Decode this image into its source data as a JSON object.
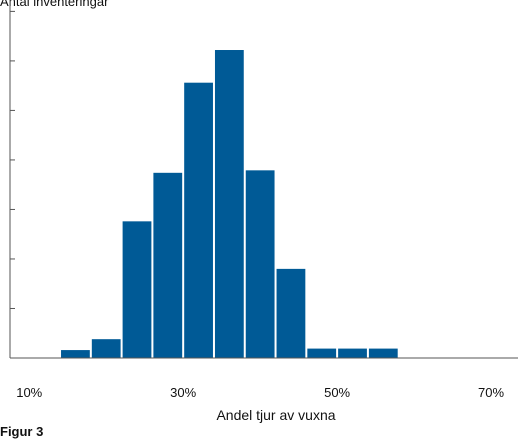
{
  "top_text": "Antal inventeringar",
  "bottom_text": "Figur 3",
  "chart_data": {
    "type": "bar",
    "subtype": "histogram",
    "xlabel": "Andel tjur av vuxna",
    "ylabel": "",
    "x_ticks": [
      {
        "value": 0.1,
        "label": "10%"
      },
      {
        "value": 0.3,
        "label": "30%"
      },
      {
        "value": 0.5,
        "label": "50%"
      },
      {
        "value": 0.7,
        "label": "70%"
      }
    ],
    "xlim": [
      0.075,
      0.735
    ],
    "ylim": [
      0,
      62
    ],
    "y_major_unit": 10,
    "y_tick_labels": false,
    "grid": false,
    "bin_width": 0.04,
    "bins": [
      {
        "start": 0.14,
        "end": 0.18,
        "value": 1.6
      },
      {
        "start": 0.18,
        "end": 0.22,
        "value": 3.8
      },
      {
        "start": 0.22,
        "end": 0.26,
        "value": 27.6
      },
      {
        "start": 0.26,
        "end": 0.3,
        "value": 37.4
      },
      {
        "start": 0.3,
        "end": 0.34,
        "value": 55.6
      },
      {
        "start": 0.34,
        "end": 0.38,
        "value": 62.2
      },
      {
        "start": 0.38,
        "end": 0.42,
        "value": 37.9
      },
      {
        "start": 0.42,
        "end": 0.46,
        "value": 18.0
      },
      {
        "start": 0.46,
        "end": 0.5,
        "value": 1.9
      },
      {
        "start": 0.5,
        "end": 0.54,
        "value": 1.9
      },
      {
        "start": 0.54,
        "end": 0.58,
        "value": 1.9
      }
    ],
    "bar_color": "#005a96",
    "axis_color": "#555555"
  }
}
